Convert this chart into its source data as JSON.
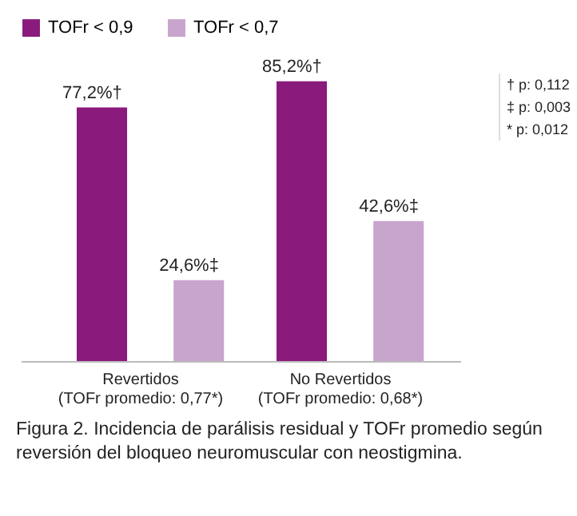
{
  "chart_data": {
    "type": "bar",
    "categories": [
      "Revertidos\n(TOFr promedio: 0,77*)",
      "No Revertidos\n(TOFr promedio: 0,68*)"
    ],
    "series": [
      {
        "name": "TOFr < 0,9",
        "color": "#8a1a7c",
        "values": [
          77.2,
          85.2
        ],
        "value_labels": [
          "77,2%†",
          "85,2%†"
        ]
      },
      {
        "name": "TOFr < 0,7",
        "color": "#c8a5cd",
        "values": [
          24.6,
          42.6
        ],
        "value_labels": [
          "24,6%‡",
          "42,6%‡"
        ]
      }
    ],
    "legend": "top left",
    "annotations": [
      "† p: 0,112",
      "‡ p: 0,003",
      "* p: 0,012",
      "Figura 2. Incidencia de parálisis residual y TOFr promedio según reversión del bloqueo neuromuscular con neostigmina."
    ]
  }
}
